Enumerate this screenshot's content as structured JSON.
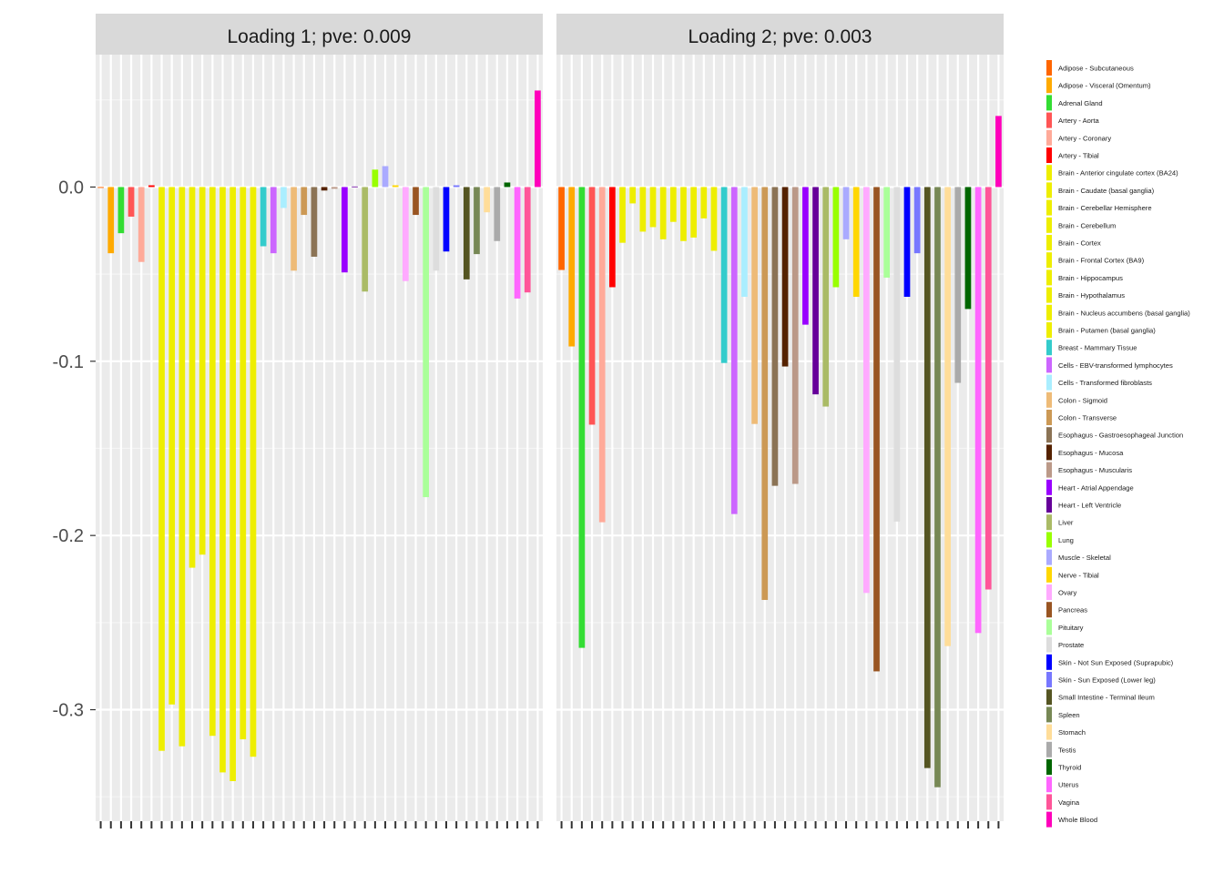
{
  "chart_data": {
    "type": "bar",
    "facets": [
      "Loading 1; pve: 0.009",
      "Loading 2; pve: 0.003"
    ],
    "ylim": [
      -0.364,
      0.076
    ],
    "yticks": [
      0.0,
      -0.1,
      -0.2,
      -0.3
    ],
    "ytick_labels": [
      "0.0",
      "-0.1",
      "-0.2",
      "-0.3"
    ],
    "xlabel": "",
    "ylabel": "",
    "grid": true,
    "legend_position": "right",
    "categories": [
      "Adipose - Subcutaneous",
      "Adipose - Visceral (Omentum)",
      "Adrenal Gland",
      "Artery - Aorta",
      "Artery - Coronary",
      "Artery - Tibial",
      "Brain - Anterior cingulate cortex (BA24)",
      "Brain - Caudate (basal ganglia)",
      "Brain - Cerebellar Hemisphere",
      "Brain - Cerebellum",
      "Brain - Cortex",
      "Brain - Frontal Cortex (BA9)",
      "Brain - Hippocampus",
      "Brain - Hypothalamus",
      "Brain - Nucleus accumbens (basal ganglia)",
      "Brain - Putamen (basal ganglia)",
      "Breast - Mammary Tissue",
      "Cells - EBV-transformed lymphocytes",
      "Cells - Transformed fibroblasts",
      "Colon - Sigmoid",
      "Colon - Transverse",
      "Esophagus - Gastroesophageal Junction",
      "Esophagus - Mucosa",
      "Esophagus - Muscularis",
      "Heart - Atrial Appendage",
      "Heart - Left Ventricle",
      "Liver",
      "Lung",
      "Muscle - Skeletal",
      "Nerve - Tibial",
      "Ovary",
      "Pancreas",
      "Pituitary",
      "Prostate",
      "Skin - Not Sun Exposed (Suprapubic)",
      "Skin - Sun Exposed (Lower leg)",
      "Small Intestine - Terminal Ileum",
      "Spleen",
      "Stomach",
      "Testis",
      "Thyroid",
      "Uterus",
      "Vagina",
      "Whole Blood"
    ],
    "colors": [
      "#FF6600",
      "#FFAA00",
      "#33DD33",
      "#FF5555",
      "#FFAA99",
      "#FF0000",
      "#EEEE00",
      "#EEEE00",
      "#EEEE00",
      "#EEEE00",
      "#EEEE00",
      "#EEEE00",
      "#EEEE00",
      "#EEEE00",
      "#EEEE00",
      "#EEEE00",
      "#33CCCC",
      "#CC66FF",
      "#AAEEFF",
      "#EEBB77",
      "#CC9955",
      "#8B7355",
      "#552200",
      "#BB9988",
      "#9900FF",
      "#660099",
      "#AABB66",
      "#99FF00",
      "#AAAAFF",
      "#FFD700",
      "#FFAAFF",
      "#995522",
      "#AAFF99",
      "#DDDDDD",
      "#0000FF",
      "#7777FF",
      "#555522",
      "#778855",
      "#FFDD99",
      "#AAAAAA",
      "#006600",
      "#FF66FF",
      "#FF5599",
      "#FF00BB"
    ],
    "series": [
      {
        "name": "Loading 1; pve: 0.009",
        "values": [
          -0.0005,
          -0.038,
          -0.0265,
          -0.017,
          -0.043,
          0.001,
          -0.3236,
          -0.297,
          -0.321,
          -0.2185,
          -0.211,
          -0.315,
          -0.336,
          -0.341,
          -0.317,
          -0.327,
          -0.034,
          -0.038,
          -0.012,
          -0.048,
          -0.016,
          -0.04,
          -0.002,
          -0.001,
          -0.049,
          0.0003,
          -0.06,
          0.01,
          0.012,
          0.001,
          -0.054,
          -0.016,
          -0.178,
          -0.048,
          -0.037,
          0.001,
          -0.053,
          -0.0385,
          -0.0145,
          -0.031,
          0.0026,
          -0.064,
          -0.0605,
          0.0554
        ]
      },
      {
        "name": "Loading 2; pve: 0.003",
        "values": [
          -0.0476,
          -0.0915,
          -0.2645,
          -0.1364,
          -0.1924,
          -0.0575,
          -0.032,
          -0.0094,
          -0.0256,
          -0.023,
          -0.03,
          -0.02,
          -0.031,
          -0.029,
          -0.018,
          -0.0366,
          -0.101,
          -0.1877,
          -0.063,
          -0.136,
          -0.237,
          -0.1715,
          -0.103,
          -0.1704,
          -0.079,
          -0.119,
          -0.126,
          -0.0575,
          -0.03,
          -0.063,
          -0.233,
          -0.278,
          -0.052,
          -0.192,
          -0.063,
          -0.038,
          -0.3335,
          -0.3445,
          -0.2635,
          -0.1124,
          -0.07,
          -0.256,
          -0.231,
          0.0408
        ]
      }
    ]
  }
}
